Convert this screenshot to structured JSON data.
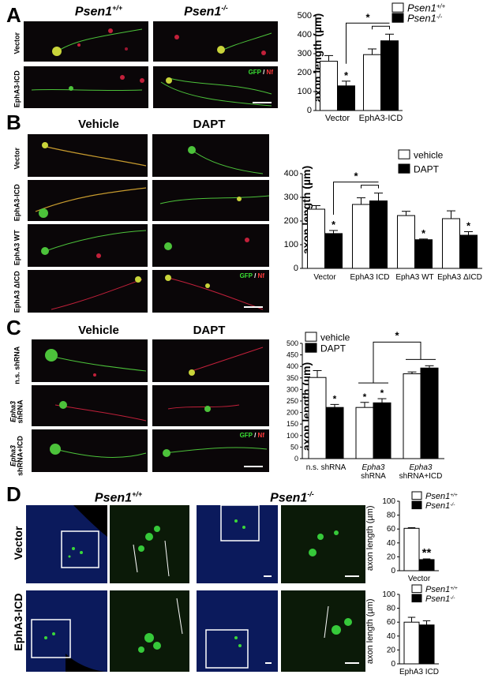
{
  "panels": {
    "A": {
      "label": "A",
      "col_titles": [
        "Psen1",
        "Psen1"
      ],
      "col_sup": [
        "+/+",
        "-/-"
      ],
      "row_labels": [
        "Vector",
        "EphA3-ICD"
      ],
      "stain": {
        "green": "GFP",
        "sep": " / ",
        "red": "Nf"
      },
      "chart_data": {
        "type": "bar",
        "ylabel": "axon length (µm)",
        "ylim": [
          0,
          500
        ],
        "yticks": [
          "0",
          "100",
          "200",
          "300",
          "400",
          "500"
        ],
        "categories": [
          "Vector",
          "EphA3-ICD"
        ],
        "series": [
          {
            "name": "Psen1",
            "sup": "+/+",
            "color": "#ffffff",
            "values": [
              260,
              295
            ],
            "err": [
              30,
              30
            ],
            "star": [
              "",
              ""
            ]
          },
          {
            "name": "Psen1",
            "sup": "-/-",
            "color": "#000000",
            "values": [
              130,
              368
            ],
            "err": [
              25,
              35
            ],
            "star": [
              "*",
              ""
            ]
          }
        ],
        "bracket_star": "*"
      }
    },
    "B": {
      "label": "B",
      "col_titles": [
        "Vehicle",
        "DAPT"
      ],
      "row_labels": [
        "Vector",
        "EphA3-ICD",
        "EphA3 WT",
        "EphA3 ΔICD"
      ],
      "stain": {
        "green": "GFP",
        "sep": " / ",
        "red": "Nf"
      },
      "chart_data": {
        "type": "bar",
        "ylabel": "axon length (µm)",
        "ylim": [
          0,
          400
        ],
        "yticks": [
          "0",
          "100",
          "200",
          "300",
          "400"
        ],
        "categories": [
          "Vector",
          "EphA3 ICD",
          "EphA3 WT",
          "EphA3 ΔICD"
        ],
        "series": [
          {
            "name": "vehicle",
            "color": "#ffffff",
            "values": [
              250,
              270,
              223,
              210
            ],
            "err": [
              15,
              28,
              18,
              33
            ],
            "star": [
              "",
              "",
              "",
              ""
            ]
          },
          {
            "name": "DAPT",
            "color": "#000000",
            "values": [
              147,
              285,
              121,
              140
            ],
            "err": [
              13,
              33,
              3,
              15
            ],
            "star": [
              "*",
              "",
              "*",
              "*"
            ]
          }
        ],
        "bracket_star": "*"
      }
    },
    "C": {
      "label": "C",
      "col_titles": [
        "Vehicle",
        "DAPT"
      ],
      "row_labels": [
        {
          "italic": "",
          "plain": "n.s. shRNA"
        },
        {
          "italic": "Epha3",
          "plain": "shRNA"
        },
        {
          "italic": "Epha3",
          "plain": "shRNA+ICD"
        }
      ],
      "stain": {
        "green": "GFP",
        "sep": " / ",
        "red": "Nf"
      },
      "chart_data": {
        "type": "bar",
        "ylabel": "axon length (µm)",
        "ylim": [
          0,
          500
        ],
        "yticks": [
          "0",
          "50",
          "100",
          "150",
          "200",
          "250",
          "300",
          "350",
          "400",
          "450",
          "500"
        ],
        "categories": [
          {
            "italic": "",
            "plain": "n.s. shRNA"
          },
          {
            "italic": "Epha3",
            "plain": "shRNA"
          },
          {
            "italic": "Epha3",
            "plain": "shRNA+ICD"
          }
        ],
        "series": [
          {
            "name": "vehicle",
            "color": "#ffffff",
            "values": [
              352,
              222,
              368
            ],
            "err": [
              30,
              22,
              8
            ],
            "star": [
              "",
              "*",
              ""
            ]
          },
          {
            "name": "DAPT",
            "color": "#000000",
            "values": [
              222,
              242,
              393
            ],
            "err": [
              13,
              18,
              10
            ],
            "star": [
              "*",
              "*",
              ""
            ]
          }
        ],
        "bracket_star": "*"
      }
    },
    "D": {
      "label": "D",
      "col_titles": [
        "Psen1",
        "Psen1"
      ],
      "col_sup": [
        "+/+",
        "-/-"
      ],
      "row_labels": [
        "Vector",
        "EphA3-ICD"
      ],
      "charts": [
        {
          "type": "bar",
          "ylabel": "axon length (µm)",
          "ylim": [
            0,
            100
          ],
          "yticks": [
            "0",
            "20",
            "40",
            "60",
            "80",
            "100"
          ],
          "categories": [
            "Vector"
          ],
          "series": [
            {
              "name": "Psen1",
              "sup": "+/+",
              "color": "#ffffff",
              "values": [
                61
              ],
              "err": [
                1
              ],
              "star": [
                ""
              ]
            },
            {
              "name": "Psen1",
              "sup": "-/-",
              "color": "#000000",
              "values": [
                16
              ],
              "err": [
                1
              ],
              "star": [
                "**"
              ]
            }
          ]
        },
        {
          "type": "bar",
          "ylabel": "axon length (µm)",
          "ylim": [
            0,
            100
          ],
          "yticks": [
            "0",
            "20",
            "40",
            "60",
            "80",
            "100"
          ],
          "categories": [
            "EphA3 ICD"
          ],
          "series": [
            {
              "name": "Psen1",
              "sup": "+/+",
              "color": "#ffffff",
              "values": [
                60
              ],
              "err": [
                7
              ],
              "star": [
                ""
              ]
            },
            {
              "name": "Psen1",
              "sup": "-/-",
              "color": "#000000",
              "values": [
                56
              ],
              "err": [
                6
              ],
              "star": [
                ""
              ]
            }
          ]
        }
      ]
    }
  }
}
